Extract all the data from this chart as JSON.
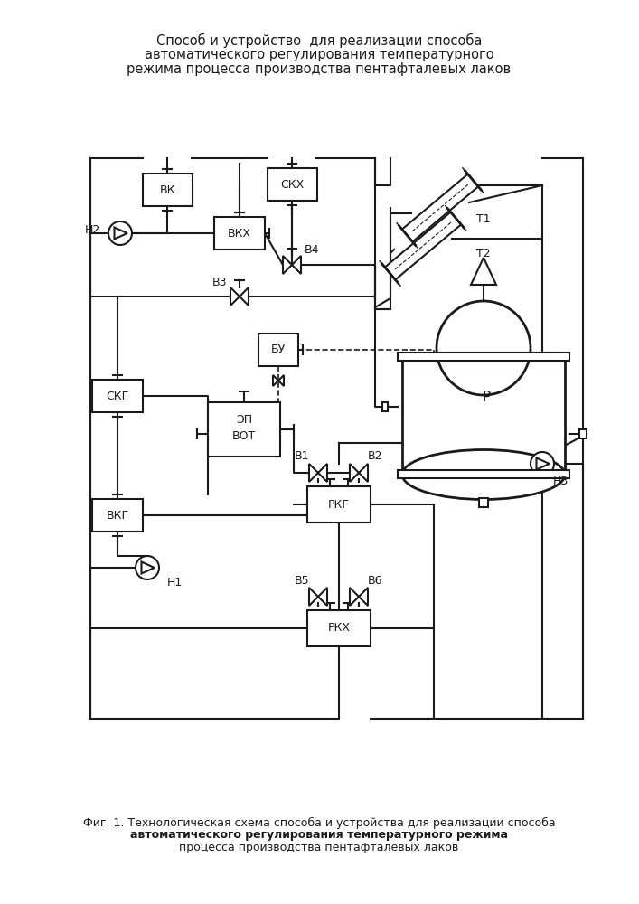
{
  "title_lines": [
    "Способ и устройство  для реализации способа",
    "автоматического регулирования температурного",
    "режима процесса производства пентафталевых лаков"
  ],
  "caption_line1": "Фиг. 1. Технологическая схема способа и устройства для реализации способа",
  "caption_line2": "автоматического регулирования температурного режима",
  "caption_line3": "процесса производства пентафталевых лаков",
  "bg_color": "#ffffff",
  "lc": "#1a1a1a"
}
